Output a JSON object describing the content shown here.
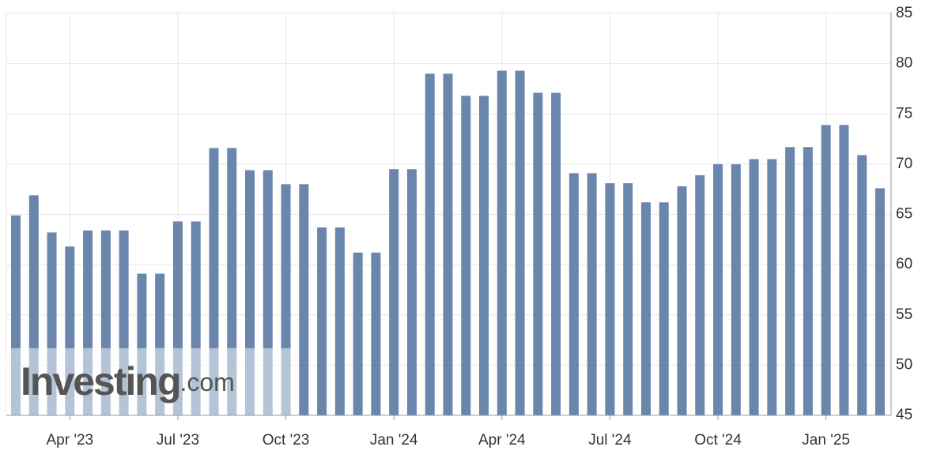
{
  "chart_data": {
    "type": "bar",
    "watermark": {
      "brand": "Investing",
      "suffix": ".com"
    },
    "categories": [
      null,
      null,
      null,
      "Apr '23",
      null,
      null,
      null,
      null,
      null,
      "Jul '23",
      null,
      null,
      null,
      null,
      null,
      "Oct '23",
      null,
      null,
      null,
      null,
      null,
      "Jan '24",
      null,
      null,
      null,
      null,
      null,
      "Apr '24",
      null,
      null,
      null,
      null,
      null,
      "Jul '24",
      null,
      null,
      null,
      null,
      null,
      "Oct '24",
      null,
      null,
      null,
      null,
      null,
      "Jan '25",
      null,
      null,
      null
    ],
    "values": [
      64.9,
      66.9,
      63.2,
      61.8,
      63.4,
      63.4,
      63.4,
      59.1,
      59.1,
      64.3,
      64.3,
      71.6,
      71.6,
      69.4,
      69.4,
      68.0,
      68.0,
      63.7,
      63.7,
      61.2,
      61.2,
      69.5,
      69.5,
      79.0,
      79.0,
      76.8,
      76.8,
      79.3,
      79.3,
      77.1,
      77.1,
      69.1,
      69.1,
      68.1,
      68.1,
      66.2,
      66.2,
      67.8,
      68.9,
      70.0,
      70.0,
      70.5,
      70.5,
      71.7,
      71.7,
      73.9,
      73.9,
      70.9,
      67.6
    ],
    "color": "#6a86ad",
    "ylim": [
      45,
      85
    ],
    "yticks": [
      45,
      50,
      55,
      60,
      65,
      70,
      75,
      80,
      85
    ],
    "grid": true
  }
}
